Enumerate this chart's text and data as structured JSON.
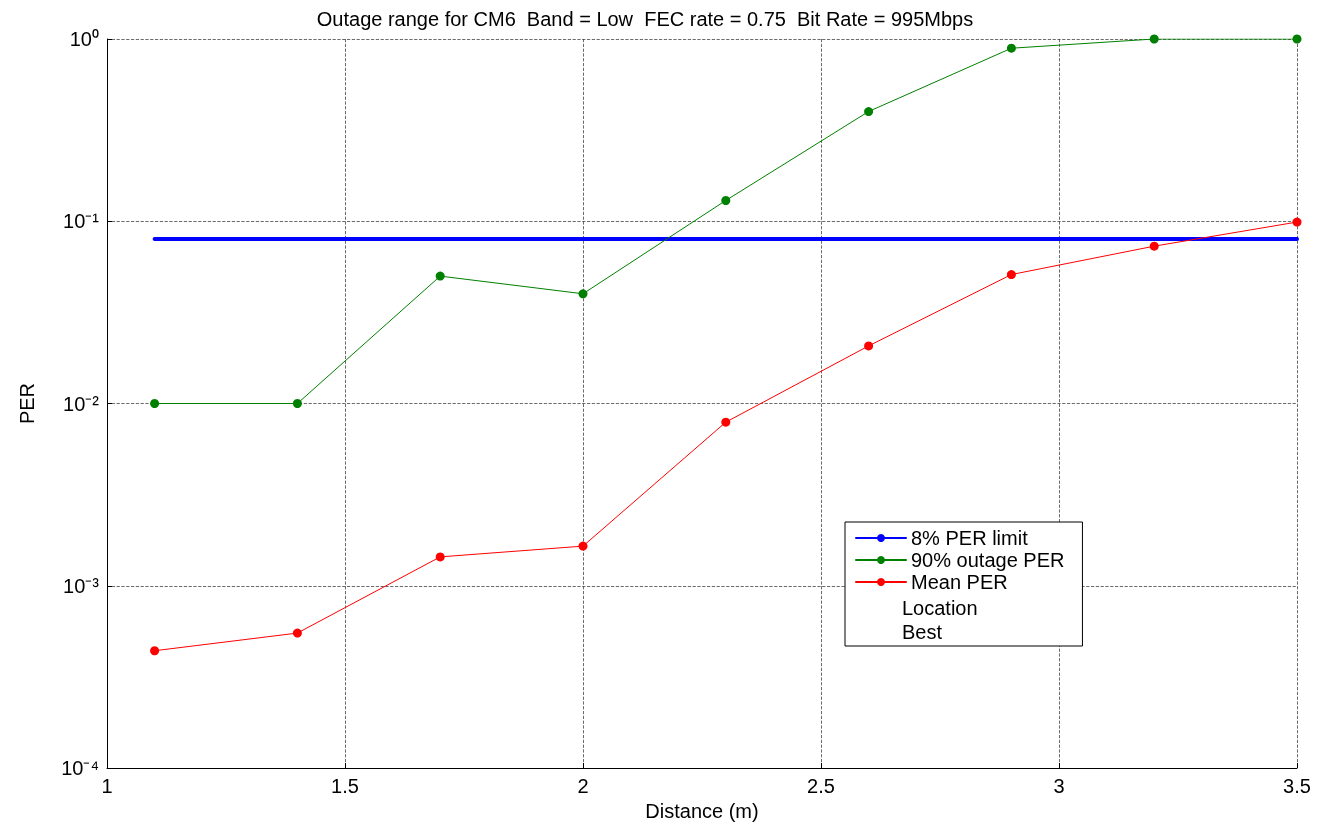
{
  "chart_data": {
    "type": "line",
    "title": "Outage range for CM6  Band = Low  FEC rate = 0.75  Bit Rate = 995Mbps",
    "xlabel": "Distance (m)",
    "ylabel": "PER",
    "x": [
      1.1,
      1.4,
      1.7,
      2.0,
      2.3,
      2.6,
      2.9,
      3.2,
      3.5
    ],
    "series": [
      {
        "name": "8% PER limit",
        "color": "#0000ff",
        "x": [
          1.1,
          3.5
        ],
        "values": [
          0.08,
          0.08
        ],
        "marker": "none"
      },
      {
        "name": "90% outage PER",
        "color": "#008000",
        "values": [
          0.01,
          0.01,
          0.05,
          0.04,
          0.13,
          0.4,
          0.89,
          1,
          1
        ],
        "marker": "circle"
      },
      {
        "name": "Mean PER",
        "color": "#ff0000",
        "values": [
          0.00044,
          0.00055,
          0.00144,
          0.00165,
          0.0079,
          0.0207,
          0.051,
          0.073,
          0.099
        ],
        "marker": "circle"
      }
    ],
    "xlim": [
      1,
      3.5
    ],
    "xticks": [
      1,
      1.5,
      2,
      2.5,
      3,
      3.5
    ],
    "ylim": [
      0.0001,
      1
    ],
    "yticks": [
      {
        "value": 0.0001,
        "label": "10⁻⁴"
      },
      {
        "value": 0.001,
        "label": "10⁻³"
      },
      {
        "value": 0.01,
        "label": "10⁻²"
      },
      {
        "value": 0.1,
        "label": "10⁻¹"
      },
      {
        "value": 1,
        "label": "10⁰"
      }
    ],
    "log": "y",
    "grid": true,
    "legend": "bottom right",
    "line_style": "solid",
    "annotations": [
      "Location",
      "Best"
    ]
  }
}
